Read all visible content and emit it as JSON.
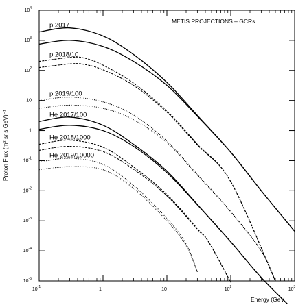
{
  "chart_data": {
    "type": "line",
    "title": "METIS PROJECTIONS – GCRs",
    "xlabel": "Energy (GeV",
    "ylabel": "Proton Flux (m² sr s GeV)⁻¹",
    "xscale": "log",
    "yscale": "log",
    "xlim": [
      0.1,
      1000
    ],
    "ylim": [
      1e-05,
      10000
    ],
    "x_ticks": [
      {
        "base": "10",
        "exp": "-1",
        "value": 0.1
      },
      {
        "base": "1",
        "exp": "",
        "value": 1
      },
      {
        "base": "10",
        "exp": "",
        "value": 10
      },
      {
        "base": "10",
        "exp": "2",
        "value": 100
      },
      {
        "base": "10",
        "exp": "3",
        "value": 1000
      }
    ],
    "y_ticks": [
      {
        "base": "10",
        "exp": "-5",
        "value": 1e-05
      },
      {
        "base": "10",
        "exp": "-4",
        "value": 0.0001
      },
      {
        "base": "10",
        "exp": "-3",
        "value": 0.001
      },
      {
        "base": "10",
        "exp": "-2",
        "value": 0.01
      },
      {
        "base": "10",
        "exp": "-1",
        "value": 0.1
      },
      {
        "base": "1",
        "exp": "",
        "value": 1
      },
      {
        "base": "10",
        "exp": "",
        "value": 10
      },
      {
        "base": "10",
        "exp": "2",
        "value": 100
      },
      {
        "base": "10",
        "exp": "3",
        "value": 1000
      },
      {
        "base": "10",
        "exp": "4",
        "value": 10000
      }
    ],
    "grid": false,
    "series": [
      {
        "name": "p 2017",
        "style": "solid",
        "x": [
          0.1,
          0.3,
          1,
          3,
          10,
          30,
          100,
          300,
          1000
        ],
        "y": [
          1900,
          2600,
          1400,
          340,
          40,
          3.2,
          0.19,
          0.01,
          0.00045
        ]
      },
      {
        "name": "",
        "style": "solid",
        "x": [
          0.1,
          0.3,
          1,
          3,
          10,
          30,
          100,
          300,
          1000
        ],
        "y": [
          750,
          1000,
          630,
          200,
          32,
          3,
          0.19,
          0.01,
          0.00045
        ]
      },
      {
        "name": "p 2018/10",
        "style": "dashed",
        "x": [
          0.1,
          0.3,
          0.5,
          1,
          3,
          10,
          30,
          100,
          500
        ],
        "y": [
          200,
          270,
          260,
          150,
          38,
          4.5,
          0.35,
          0.02,
          1e-05
        ]
      },
      {
        "name": "",
        "style": "dashed",
        "x": [
          0.1,
          0.3,
          0.5,
          1,
          3,
          10,
          30,
          100,
          500
        ],
        "y": [
          125,
          165,
          160,
          105,
          32,
          4.1,
          0.33,
          0.02,
          1e-05
        ]
      },
      {
        "name": "p 2019/100",
        "style": "dotted",
        "x": [
          0.1,
          0.3,
          1,
          3,
          10,
          30,
          100,
          300,
          500
        ],
        "y": [
          10,
          13,
          9,
          3.3,
          0.45,
          0.035,
          0.002,
          0.0001,
          1e-05
        ]
      },
      {
        "name": "",
        "style": "dotted",
        "x": [
          0.1,
          0.3,
          1,
          3,
          10,
          30,
          100,
          300,
          500
        ],
        "y": [
          5.5,
          7,
          5.5,
          2.3,
          0.4,
          0.033,
          0.002,
          0.0001,
          1e-05
        ]
      },
      {
        "name": "He 2017/100",
        "style": "solid",
        "x": [
          0.1,
          0.3,
          1,
          3,
          10,
          30,
          100,
          300,
          1000
        ],
        "y": [
          2,
          2.8,
          1.5,
          0.35,
          0.045,
          0.0035,
          0.0002,
          1.3e-05,
          1e-06
        ]
      },
      {
        "name": "",
        "style": "solid",
        "x": [
          0.1,
          0.3,
          1,
          3,
          10,
          30,
          100,
          300,
          1000
        ],
        "y": [
          1.1,
          1.5,
          1,
          0.3,
          0.04,
          0.0034,
          0.0002,
          1.3e-05,
          1e-06
        ]
      },
      {
        "name": "He 2018/1000",
        "style": "dashed",
        "x": [
          0.1,
          0.3,
          1,
          3,
          10,
          30,
          45,
          100
        ],
        "y": [
          0.35,
          0.48,
          0.28,
          0.062,
          0.0075,
          0.00055,
          0.0002,
          9e-06
        ]
      },
      {
        "name": "",
        "style": "dashed",
        "x": [
          0.1,
          0.3,
          1,
          3,
          10,
          30,
          45,
          100
        ],
        "y": [
          0.22,
          0.3,
          0.2,
          0.052,
          0.0068,
          0.00052,
          0.0002,
          9e-06
        ]
      },
      {
        "name": "He 2019/10000",
        "style": "dotted",
        "x": [
          0.1,
          0.3,
          1,
          3,
          10,
          20,
          30
        ],
        "y": [
          0.09,
          0.12,
          0.075,
          0.015,
          0.0012,
          0.00017,
          2e-05
        ]
      },
      {
        "name": "",
        "style": "dotted",
        "x": [
          0.1,
          0.3,
          1,
          3,
          10,
          20,
          30
        ],
        "y": [
          0.05,
          0.063,
          0.05,
          0.012,
          0.001,
          0.00015,
          2e-05
        ]
      }
    ]
  }
}
